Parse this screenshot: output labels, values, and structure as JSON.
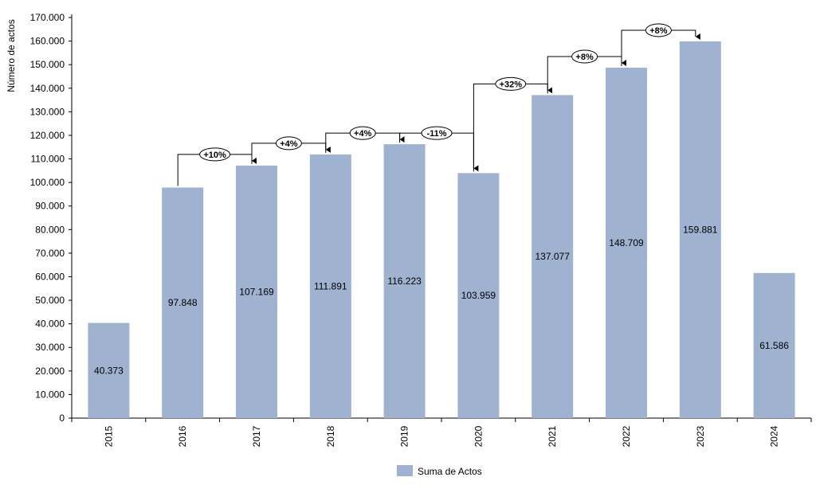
{
  "chart_data": {
    "type": "bar",
    "ylabel": "Número de actos",
    "xlabel": "",
    "ylim": [
      0,
      170000
    ],
    "ytick_step": 10000,
    "ytick_labels": [
      "0",
      "10.000",
      "20.000",
      "30.000",
      "40.000",
      "50.000",
      "60.000",
      "70.000",
      "80.000",
      "90.000",
      "100.000",
      "110.000",
      "120.000",
      "130.000",
      "140.000",
      "150.000",
      "160.000",
      "170.000"
    ],
    "categories": [
      "2015",
      "2016",
      "2017",
      "2018",
      "2019",
      "2020",
      "2021",
      "2022",
      "2023",
      "2024"
    ],
    "series": [
      {
        "name": "Suma de Actos",
        "values": [
          40373,
          97848,
          107169,
          111891,
          116223,
          103959,
          137077,
          148709,
          159881,
          61586
        ],
        "value_labels": [
          "40.373",
          "97.848",
          "107.169",
          "111.891",
          "116.223",
          "103.959",
          "137.077",
          "148.709",
          "159.881",
          "61.586"
        ]
      }
    ],
    "annotations": [
      {
        "from": "2016",
        "to": "2017",
        "label": "+10%"
      },
      {
        "from": "2017",
        "to": "2018",
        "label": "+4%"
      },
      {
        "from": "2018",
        "to": "2019",
        "label": "+4%"
      },
      {
        "from": "2019",
        "to": "2020",
        "label": "-11%"
      },
      {
        "from": "2020",
        "to": "2021",
        "label": "+32%"
      },
      {
        "from": "2021",
        "to": "2022",
        "label": "+8%"
      },
      {
        "from": "2022",
        "to": "2023",
        "label": "+8%"
      }
    ],
    "legend_position": "bottom",
    "colors": {
      "bar": "#9fb2cf",
      "axis": "#000000"
    }
  }
}
